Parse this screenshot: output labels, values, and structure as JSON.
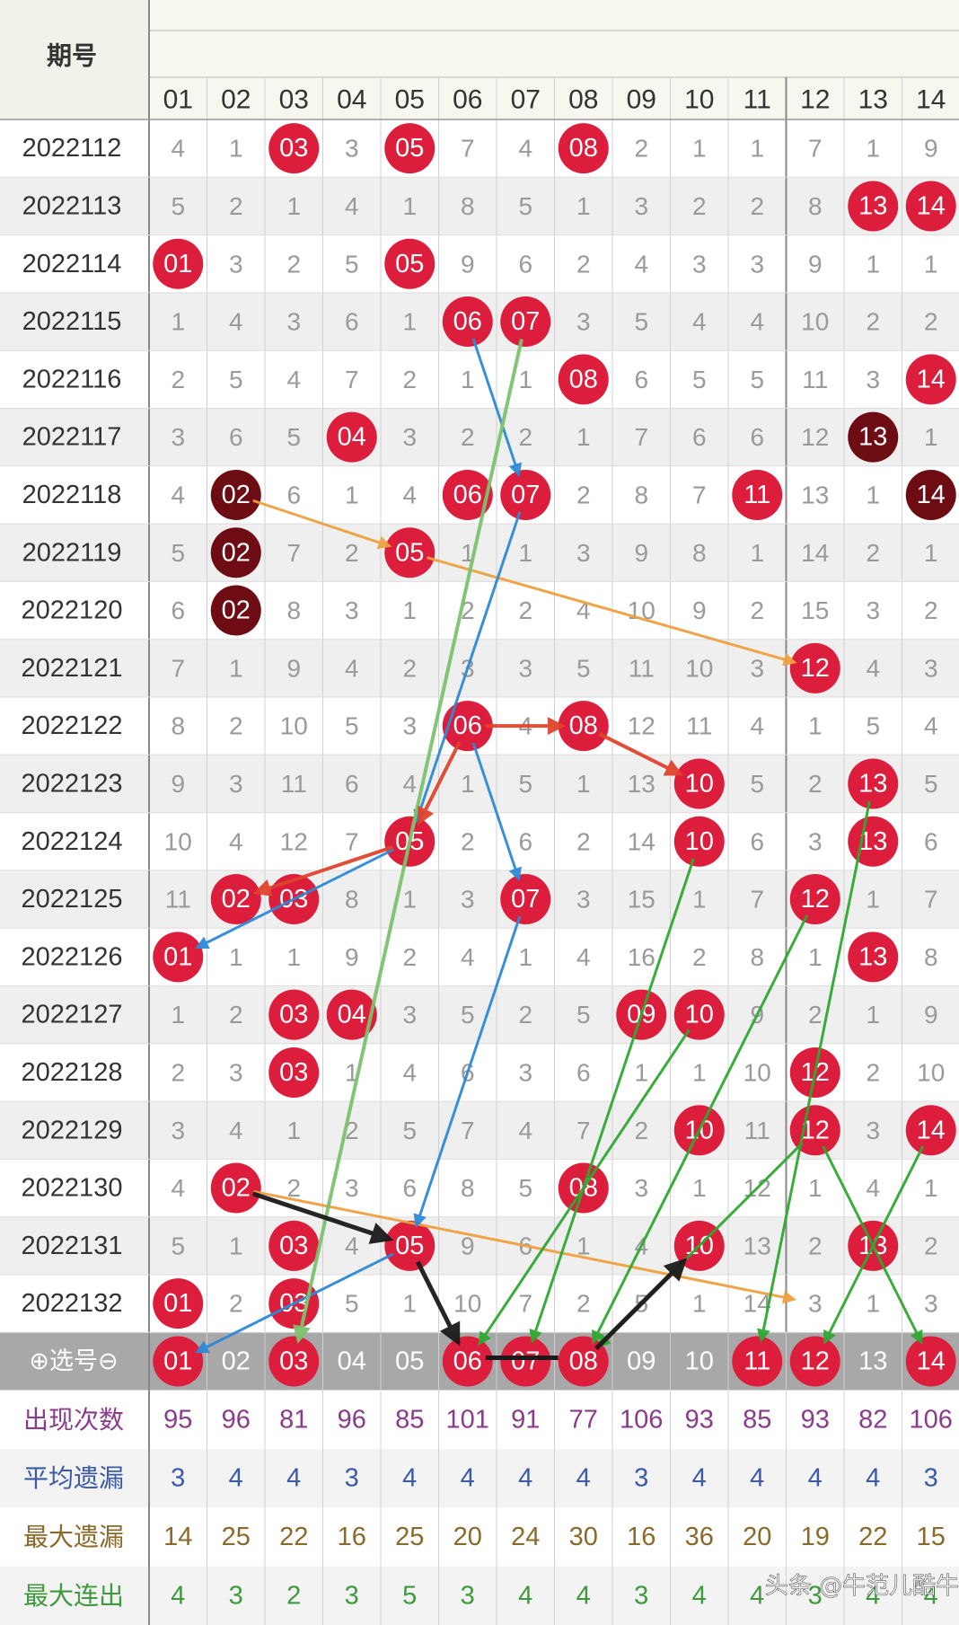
{
  "chart_data": {
    "type": "table",
    "header_title": "期号",
    "columns": [
      "01",
      "02",
      "03",
      "04",
      "05",
      "06",
      "07",
      "08",
      "09",
      "10",
      "11",
      "12",
      "13",
      "14"
    ],
    "rows": [
      {
        "period": "2022112",
        "cells": [
          "4",
          "1",
          "03",
          "3",
          "05",
          "7",
          "4",
          "08",
          "2",
          "1",
          "1",
          "7",
          "1",
          "9"
        ],
        "hits": [
          3,
          5,
          8
        ],
        "streak": []
      },
      {
        "period": "2022113",
        "cells": [
          "5",
          "2",
          "1",
          "4",
          "1",
          "8",
          "5",
          "1",
          "3",
          "2",
          "2",
          "8",
          "13",
          "14"
        ],
        "hits": [
          13,
          14
        ],
        "streak": []
      },
      {
        "period": "2022114",
        "cells": [
          "01",
          "3",
          "2",
          "5",
          "05",
          "9",
          "6",
          "2",
          "4",
          "3",
          "3",
          "9",
          "1",
          "1"
        ],
        "hits": [
          1,
          5
        ],
        "streak": []
      },
      {
        "period": "2022115",
        "cells": [
          "1",
          "4",
          "3",
          "6",
          "1",
          "06",
          "07",
          "3",
          "5",
          "4",
          "4",
          "10",
          "2",
          "2"
        ],
        "hits": [
          6,
          7
        ],
        "streak": []
      },
      {
        "period": "2022116",
        "cells": [
          "2",
          "5",
          "4",
          "7",
          "2",
          "1",
          "1",
          "08",
          "6",
          "5",
          "5",
          "11",
          "3",
          "14"
        ],
        "hits": [
          8,
          14
        ],
        "streak": []
      },
      {
        "period": "2022117",
        "cells": [
          "3",
          "6",
          "5",
          "04",
          "3",
          "2",
          "2",
          "1",
          "7",
          "6",
          "6",
          "12",
          "13",
          "1"
        ],
        "hits": [
          4
        ],
        "streak": [
          13
        ]
      },
      {
        "period": "2022118",
        "cells": [
          "4",
          "02",
          "6",
          "1",
          "4",
          "06",
          "07",
          "2",
          "8",
          "7",
          "11",
          "13",
          "1",
          "14"
        ],
        "hits": [
          6,
          7,
          11
        ],
        "streak": [
          2,
          14
        ]
      },
      {
        "period": "2022119",
        "cells": [
          "5",
          "02",
          "7",
          "2",
          "05",
          "1",
          "1",
          "3",
          "9",
          "8",
          "1",
          "14",
          "2",
          "1"
        ],
        "hits": [
          5
        ],
        "streak": [
          2
        ]
      },
      {
        "period": "2022120",
        "cells": [
          "6",
          "02",
          "8",
          "3",
          "1",
          "2",
          "2",
          "4",
          "10",
          "9",
          "2",
          "15",
          "3",
          "2"
        ],
        "hits": [],
        "streak": [
          2
        ]
      },
      {
        "period": "2022121",
        "cells": [
          "7",
          "1",
          "9",
          "4",
          "2",
          "3",
          "3",
          "5",
          "11",
          "10",
          "3",
          "12",
          "4",
          "3"
        ],
        "hits": [
          12
        ],
        "streak": []
      },
      {
        "period": "2022122",
        "cells": [
          "8",
          "2",
          "10",
          "5",
          "3",
          "06",
          "4",
          "08",
          "12",
          "11",
          "4",
          "1",
          "5",
          "4"
        ],
        "hits": [
          6,
          8
        ],
        "streak": []
      },
      {
        "period": "2022123",
        "cells": [
          "9",
          "3",
          "11",
          "6",
          "4",
          "1",
          "5",
          "1",
          "13",
          "10",
          "5",
          "2",
          "13",
          "5"
        ],
        "hits": [
          10,
          13
        ],
        "streak": []
      },
      {
        "period": "2022124",
        "cells": [
          "10",
          "4",
          "12",
          "7",
          "05",
          "2",
          "6",
          "2",
          "14",
          "10",
          "6",
          "3",
          "13",
          "6"
        ],
        "hits": [
          5,
          10,
          13
        ],
        "streak": []
      },
      {
        "period": "2022125",
        "cells": [
          "11",
          "02",
          "03",
          "8",
          "1",
          "3",
          "07",
          "3",
          "15",
          "1",
          "7",
          "12",
          "1",
          "7"
        ],
        "hits": [
          2,
          3,
          7,
          12
        ],
        "streak": []
      },
      {
        "period": "2022126",
        "cells": [
          "01",
          "1",
          "1",
          "9",
          "2",
          "4",
          "1",
          "4",
          "16",
          "2",
          "8",
          "1",
          "13",
          "8"
        ],
        "hits": [
          1,
          13
        ],
        "streak": []
      },
      {
        "period": "2022127",
        "cells": [
          "1",
          "2",
          "03",
          "04",
          "3",
          "5",
          "2",
          "5",
          "09",
          "10",
          "9",
          "2",
          "1",
          "9"
        ],
        "hits": [
          3,
          4,
          9,
          10
        ],
        "streak": []
      },
      {
        "period": "2022128",
        "cells": [
          "2",
          "3",
          "03",
          "1",
          "4",
          "6",
          "3",
          "6",
          "1",
          "1",
          "10",
          "12",
          "2",
          "10"
        ],
        "hits": [
          3,
          12
        ],
        "streak": []
      },
      {
        "period": "2022129",
        "cells": [
          "3",
          "4",
          "1",
          "2",
          "5",
          "7",
          "4",
          "7",
          "2",
          "10",
          "11",
          "12",
          "3",
          "14"
        ],
        "hits": [
          10,
          12,
          14
        ],
        "streak": []
      },
      {
        "period": "2022130",
        "cells": [
          "4",
          "02",
          "2",
          "3",
          "6",
          "8",
          "5",
          "08",
          "3",
          "1",
          "12",
          "1",
          "4",
          "1"
        ],
        "hits": [
          2,
          8
        ],
        "streak": []
      },
      {
        "period": "2022131",
        "cells": [
          "5",
          "1",
          "03",
          "4",
          "05",
          "9",
          "6",
          "1",
          "4",
          "10",
          "13",
          "2",
          "13",
          "2"
        ],
        "hits": [
          3,
          5,
          10,
          13
        ],
        "streak": []
      },
      {
        "period": "2022132",
        "cells": [
          "01",
          "2",
          "03",
          "5",
          "1",
          "10",
          "7",
          "2",
          "5",
          "1",
          "14",
          "3",
          "1",
          "3"
        ],
        "hits": [
          1,
          3
        ],
        "streak": []
      }
    ],
    "pick_row": {
      "label": "⊕选号⊖",
      "cells": [
        "01",
        "02",
        "03",
        "04",
        "05",
        "06",
        "07",
        "08",
        "09",
        "10",
        "11",
        "12",
        "13",
        "14"
      ],
      "selected": [
        1,
        3,
        6,
        7,
        8,
        11,
        12,
        14
      ]
    },
    "stats": [
      {
        "label": "出现次数",
        "color": "#8a3c8c",
        "values": [
          "95",
          "96",
          "81",
          "96",
          "85",
          "101",
          "91",
          "77",
          "106",
          "93",
          "85",
          "93",
          "82",
          "106"
        ]
      },
      {
        "label": "平均遗漏",
        "color": "#3b5aa8",
        "values": [
          "3",
          "4",
          "4",
          "3",
          "4",
          "4",
          "4",
          "4",
          "3",
          "4",
          "4",
          "4",
          "4",
          "3"
        ]
      },
      {
        "label": "最大遗漏",
        "color": "#8a6a2a",
        "values": [
          "14",
          "25",
          "22",
          "16",
          "25",
          "20",
          "24",
          "30",
          "16",
          "36",
          "20",
          "19",
          "22",
          "15"
        ]
      },
      {
        "label": "最大连出",
        "color": "#3d9a3d",
        "values": [
          "4",
          "3",
          "2",
          "3",
          "5",
          "3",
          "4",
          "4",
          "3",
          "4",
          "4",
          "3",
          "4",
          "4"
        ]
      }
    ],
    "colors": {
      "hit": "#dc1e3c",
      "streak": "#6e0c14",
      "miss_text": "#9a9a9a",
      "stripe": "#efefef",
      "pick_bg": "#a8a8a8"
    },
    "watermark": "头条 @牛范儿酷牛"
  }
}
